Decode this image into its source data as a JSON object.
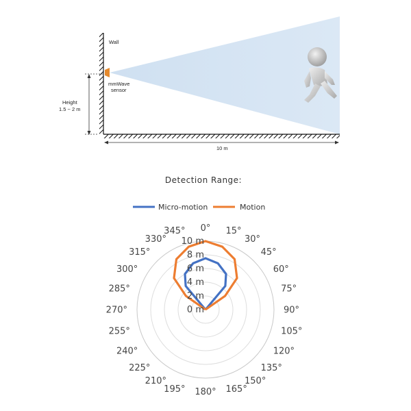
{
  "diagram": {
    "wall_label": "Wall",
    "sensor_label_line1": "mmWave",
    "sensor_label_line2": "sensor",
    "height_label_line1": "Height",
    "height_label_line2": "1.5 ~ 2 m",
    "distance_label": "10 m",
    "colors": {
      "sensor": "#e58a2e",
      "beam": "#d4e4f3",
      "hatch": "#111111"
    },
    "figure_icon": "walking-person-icon"
  },
  "chart_title": "Detection Range:",
  "chart_data": {
    "type": "polar-line",
    "title": "Detection Range:",
    "angle_labels": [
      "0°",
      "15°",
      "30°",
      "45°",
      "60°",
      "75°",
      "90°",
      "105°",
      "120°",
      "135°",
      "150°",
      "165°",
      "180°",
      "195°",
      "210°",
      "225°",
      "240°",
      "255°",
      "270°",
      "285°",
      "300°",
      "315°",
      "330°",
      "345°"
    ],
    "radial_labels": [
      "0 m",
      "2 m",
      "4 m",
      "6 m",
      "8 m",
      "10 m"
    ],
    "rlim": [
      0,
      10
    ],
    "grid": true,
    "legend_position": "top",
    "series": [
      {
        "name": "Micro-motion",
        "color": "#4472c4",
        "points": [
          {
            "angle": -45,
            "r": 0
          },
          {
            "angle": -40,
            "r": 4.5
          },
          {
            "angle": -30,
            "r": 6.0
          },
          {
            "angle": -15,
            "r": 7.0
          },
          {
            "angle": 0,
            "r": 7.5
          },
          {
            "angle": 15,
            "r": 7.0
          },
          {
            "angle": 30,
            "r": 6.0
          },
          {
            "angle": 40,
            "r": 4.5
          },
          {
            "angle": 45,
            "r": 0
          }
        ]
      },
      {
        "name": "Motion",
        "color": "#ed7d31",
        "points": [
          {
            "angle": -60,
            "r": 0
          },
          {
            "angle": -55,
            "r": 3.5
          },
          {
            "angle": -45,
            "r": 6.5
          },
          {
            "angle": -30,
            "r": 8.5
          },
          {
            "angle": -15,
            "r": 9.5
          },
          {
            "angle": 0,
            "r": 10.0
          },
          {
            "angle": 15,
            "r": 9.5
          },
          {
            "angle": 30,
            "r": 8.5
          },
          {
            "angle": 45,
            "r": 6.5
          },
          {
            "angle": 55,
            "r": 3.5
          },
          {
            "angle": 60,
            "r": 0
          }
        ]
      }
    ]
  }
}
